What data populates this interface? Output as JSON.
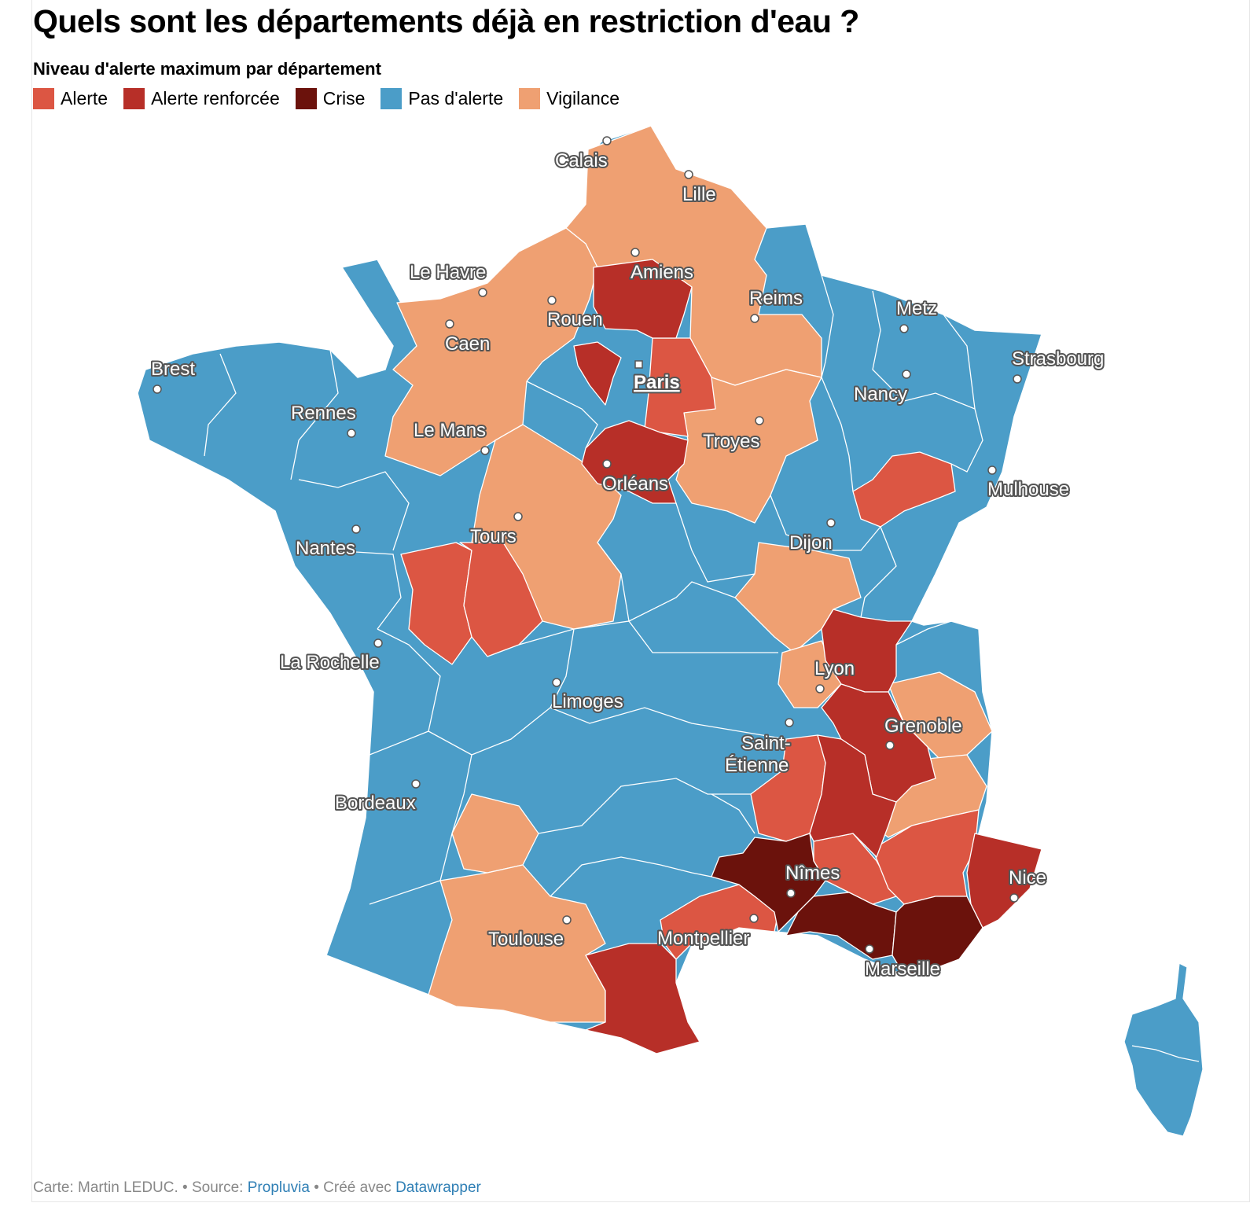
{
  "title": "Quels sont les départements déjà en restriction d'eau ?",
  "subtitle": "Niveau d'alerte maximum par département",
  "legend": [
    {
      "label": "Alerte",
      "color": "#dc5643"
    },
    {
      "label": "Alerte renforcée",
      "color": "#b72f28"
    },
    {
      "label": "Crise",
      "color": "#6b120c"
    },
    {
      "label": "Pas d'alerte",
      "color": "#4b9dc8"
    },
    {
      "label": "Vigilance",
      "color": "#efa072"
    }
  ],
  "cities": [
    {
      "name": "Calais"
    },
    {
      "name": "Lille"
    },
    {
      "name": "Le Havre"
    },
    {
      "name": "Amiens"
    },
    {
      "name": "Reims"
    },
    {
      "name": "Metz"
    },
    {
      "name": "Rouen"
    },
    {
      "name": "Caen"
    },
    {
      "name": "Brest"
    },
    {
      "name": "Strasbourg"
    },
    {
      "name": "Paris"
    },
    {
      "name": "Nancy"
    },
    {
      "name": "Rennes"
    },
    {
      "name": "Le Mans"
    },
    {
      "name": "Troyes"
    },
    {
      "name": "Orléans"
    },
    {
      "name": "Mulhouse"
    },
    {
      "name": "Tours"
    },
    {
      "name": "Nantes"
    },
    {
      "name": "Dijon"
    },
    {
      "name": "La Rochelle"
    },
    {
      "name": "Lyon"
    },
    {
      "name": "Limoges"
    },
    {
      "name": "Grenoble"
    },
    {
      "name": "Saint-"
    },
    {
      "name": "Étienne"
    },
    {
      "name": "Bordeaux"
    },
    {
      "name": "Nîmes"
    },
    {
      "name": "Nice"
    },
    {
      "name": "Toulouse"
    },
    {
      "name": "Montpellier"
    },
    {
      "name": "Marseille"
    }
  ],
  "footer": {
    "credit": "Carte: Martin LEDUC. • Source: ",
    "source": "Propluvia",
    "made_with": " • Créé avec ",
    "tool": "Datawrapper"
  }
}
